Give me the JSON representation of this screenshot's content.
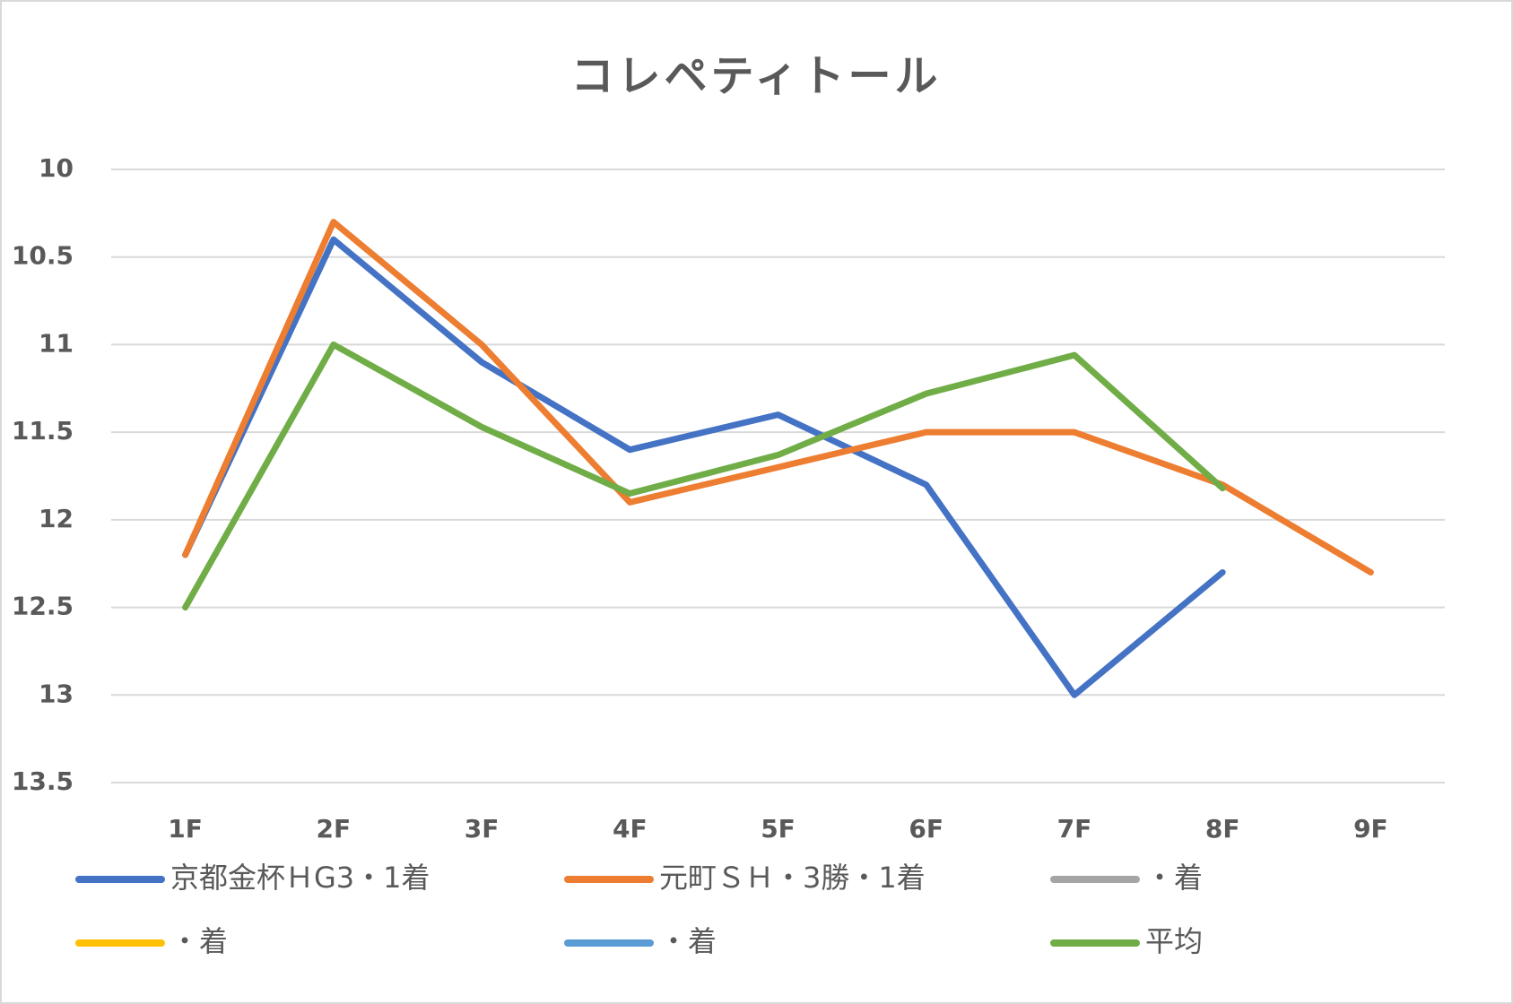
{
  "chart_data": {
    "type": "line",
    "title": "コレペティトール",
    "categories": [
      "1F",
      "2F",
      "3F",
      "4F",
      "5F",
      "6F",
      "7F",
      "8F",
      "9F"
    ],
    "series": [
      {
        "name": "京都金杯ＨG3・1着",
        "color": "#4472c4",
        "values": [
          12.2,
          10.4,
          11.1,
          11.6,
          11.4,
          11.8,
          13.0,
          12.3,
          null
        ]
      },
      {
        "name": "元町ＳＨ・3勝・1着",
        "color": "#ed7d31",
        "values": [
          12.2,
          10.3,
          11.0,
          11.9,
          11.7,
          11.5,
          11.5,
          11.8,
          12.3
        ]
      },
      {
        "name": "・着",
        "color": "#a5a5a5",
        "values": [
          null,
          null,
          null,
          null,
          null,
          null,
          null,
          null,
          null
        ]
      },
      {
        "name": "・着",
        "color": "#ffc000",
        "values": [
          null,
          null,
          null,
          null,
          null,
          null,
          null,
          null,
          null
        ]
      },
      {
        "name": "・着",
        "color": "#5b9bd5",
        "values": [
          null,
          null,
          null,
          null,
          null,
          null,
          null,
          null,
          null
        ]
      },
      {
        "name": "平均",
        "color": "#70ad47",
        "values": [
          12.5,
          11.0,
          11.47,
          11.85,
          11.63,
          11.28,
          11.06,
          11.82,
          null
        ]
      }
    ],
    "ylim": [
      10,
      13.5
    ],
    "yticks": [
      10,
      10.5,
      11,
      11.5,
      12,
      12.5,
      13,
      13.5
    ],
    "y_inverted": true,
    "grid": true,
    "legend": "bottom"
  }
}
